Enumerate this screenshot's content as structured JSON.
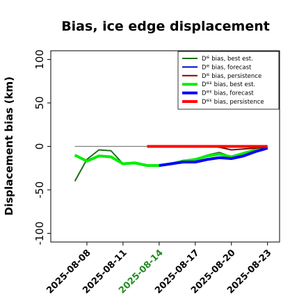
{
  "chart_data": {
    "type": "line",
    "title": "Bias, ice edge displacement",
    "xlabel": "",
    "ylabel": "Displacement bias (km)",
    "ylim": [
      -110,
      110
    ],
    "xlim": [
      "2025-08-05",
      "2025-08-24"
    ],
    "yticks": [
      -100,
      -50,
      0,
      50,
      100
    ],
    "xticks": [
      "2025-08-08",
      "2025-08-11",
      "2025-08-14",
      "2025-08-17",
      "2025-08-20",
      "2025-08-23"
    ],
    "xtick_colors": [
      "#000000",
      "#000000",
      "#228b22",
      "#000000",
      "#000000",
      "#000000"
    ],
    "grid": false,
    "legend_position": "top-right",
    "series": [
      {
        "name": "Dᴵᴱ bias, best est.",
        "color": "#1a6e1a",
        "width": 2,
        "x": [
          "2025-08-07",
          "2025-08-08",
          "2025-08-09",
          "2025-08-10",
          "2025-08-11",
          "2025-08-12",
          "2025-08-13",
          "2025-08-14",
          "2025-08-15",
          "2025-08-16",
          "2025-08-17",
          "2025-08-18",
          "2025-08-19",
          "2025-08-20",
          "2025-08-21",
          "2025-08-22",
          "2025-08-23"
        ],
        "values": [
          -40,
          -15,
          -4,
          -5,
          -20,
          -20,
          -22,
          -22,
          -20,
          -16,
          -15,
          -10,
          -7,
          -12,
          -9,
          -3,
          0
        ]
      },
      {
        "name": "Dᴵᴱ bias, forecast",
        "color": "#0000cc",
        "width": 2,
        "x": [
          "2025-08-14",
          "2025-08-15",
          "2025-08-16",
          "2025-08-17",
          "2025-08-18",
          "2025-08-19",
          "2025-08-20",
          "2025-08-21",
          "2025-08-22",
          "2025-08-23"
        ],
        "values": [
          -22,
          -20,
          -18,
          -18,
          -15,
          -13,
          -14,
          -11,
          -6,
          -2
        ]
      },
      {
        "name": "Dᴵᴱ bias, persistence",
        "color": "#8b0000",
        "width": 2,
        "x": [
          "2025-08-13",
          "2025-08-14",
          "2025-08-15",
          "2025-08-16",
          "2025-08-17",
          "2025-08-18",
          "2025-08-19",
          "2025-08-20",
          "2025-08-21",
          "2025-08-22",
          "2025-08-23"
        ],
        "values": [
          0,
          0,
          0,
          0,
          0,
          0,
          -1,
          -4,
          -3,
          -2,
          -1
        ]
      },
      {
        "name": "Dᴵᴱᴱ bias, best est.",
        "color": "#00ee00",
        "width": 4,
        "x": [
          "2025-08-07",
          "2025-08-08",
          "2025-08-09",
          "2025-08-10",
          "2025-08-11",
          "2025-08-12",
          "2025-08-13",
          "2025-08-14",
          "2025-08-15",
          "2025-08-16",
          "2025-08-17",
          "2025-08-18",
          "2025-08-19",
          "2025-08-20",
          "2025-08-21",
          "2025-08-22",
          "2025-08-23"
        ],
        "values": [
          -10,
          -17,
          -11,
          -12,
          -20,
          -19,
          -22,
          -22,
          -20,
          -17,
          -15,
          -11,
          -9,
          -12,
          -8,
          -4,
          -1
        ]
      },
      {
        "name": "Dᴵᴱᴱ bias, forecast",
        "color": "#0000ff",
        "width": 4,
        "x": [
          "2025-08-14",
          "2025-08-15",
          "2025-08-16",
          "2025-08-17",
          "2025-08-18",
          "2025-08-19",
          "2025-08-20",
          "2025-08-21",
          "2025-08-22",
          "2025-08-23"
        ],
        "values": [
          -22,
          -20,
          -18,
          -18,
          -15,
          -13,
          -14,
          -11,
          -6,
          -2
        ]
      },
      {
        "name": "Dᴵᴱᴱ bias, persistence",
        "color": "#ff0000",
        "width": 4,
        "x": [
          "2025-08-13",
          "2025-08-14",
          "2025-08-15",
          "2025-08-16",
          "2025-08-17",
          "2025-08-18",
          "2025-08-19",
          "2025-08-20",
          "2025-08-21",
          "2025-08-22",
          "2025-08-23"
        ],
        "values": [
          0,
          0,
          0,
          0,
          0,
          0,
          0,
          0,
          0,
          0,
          0
        ]
      }
    ],
    "zero_line": {
      "color": "#808080",
      "x": [
        "2025-08-07",
        "2025-08-23"
      ],
      "values": [
        0,
        0
      ]
    }
  }
}
